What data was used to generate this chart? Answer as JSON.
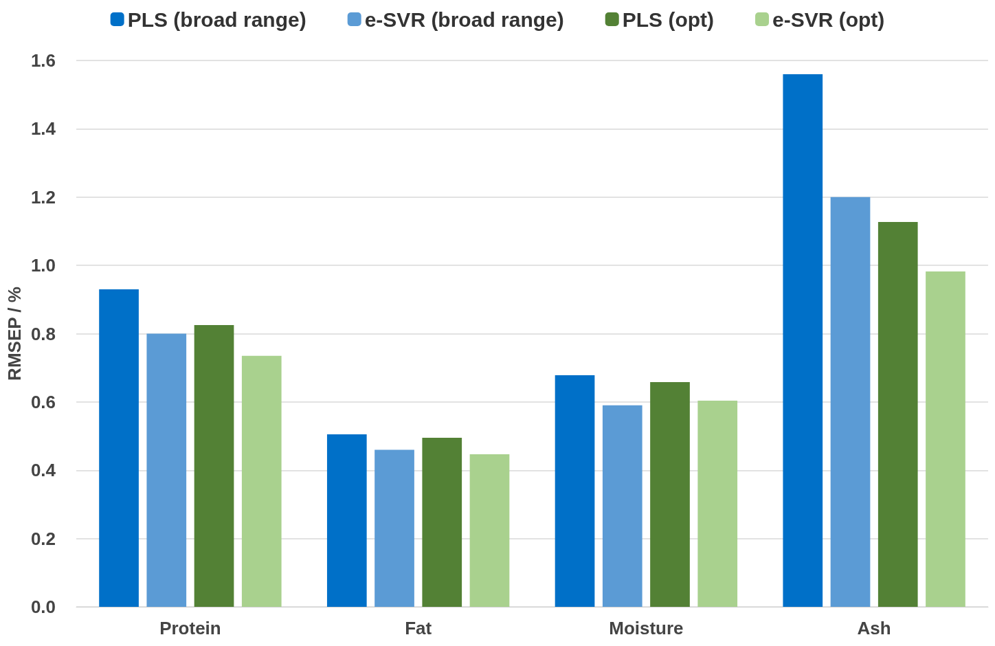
{
  "chart_data": {
    "type": "bar",
    "ylabel": "RMSEP / %",
    "categories": [
      "Protein",
      "Fat",
      "Moisture",
      "Ash"
    ],
    "series": [
      {
        "name": "PLS (broad range)",
        "color": "#0070c8",
        "values": [
          0.93,
          0.505,
          0.678,
          1.56
        ]
      },
      {
        "name": "e-SVR (broad range)",
        "color": "#5b9bd5",
        "values": [
          0.8,
          0.46,
          0.59,
          1.2
        ]
      },
      {
        "name": "PLS (opt)",
        "color": "#538135",
        "values": [
          0.825,
          0.495,
          0.658,
          1.127
        ]
      },
      {
        "name": "e-SVR (opt)",
        "color": "#a9d18e",
        "values": [
          0.735,
          0.447,
          0.604,
          0.982
        ]
      }
    ],
    "ylim": [
      0,
      1.6
    ],
    "yticks": [
      {
        "value": 0,
        "label": "0.0"
      },
      {
        "value": 0.2,
        "label": "0.2"
      },
      {
        "value": 0.4,
        "label": "0.4"
      },
      {
        "value": 0.6,
        "label": "0.6"
      },
      {
        "value": 0.8,
        "label": "0.8"
      },
      {
        "value": 1,
        "label": "1.0"
      },
      {
        "value": 1.2,
        "label": "1.2"
      },
      {
        "value": 1.4,
        "label": "1.4"
      },
      {
        "value": 1.6,
        "label": "1.6"
      }
    ],
    "grid": "y",
    "legend": "top"
  }
}
